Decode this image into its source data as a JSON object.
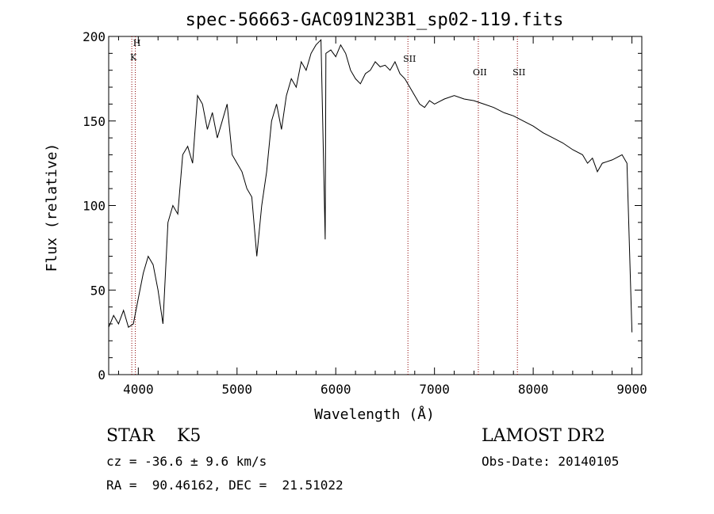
{
  "chart_data": {
    "type": "line",
    "title": "spec-56663-GAC091N23B1_sp02-119.fits",
    "xlabel": "Wavelength (Å)",
    "ylabel": "Flux (relative)",
    "xlim": [
      3700,
      9100
    ],
    "ylim": [
      0,
      200
    ],
    "x_ticks": [
      4000,
      5000,
      6000,
      7000,
      8000,
      9000
    ],
    "y_ticks": [
      0,
      50,
      100,
      150,
      200
    ],
    "line_color": "#000000",
    "marker_color": "#8b0000",
    "grid": false,
    "series": [
      {
        "x": [
          3700,
          3750,
          3800,
          3850,
          3900,
          3950,
          4000,
          4050,
          4100,
          4150,
          4200,
          4250,
          4300,
          4350,
          4400,
          4450,
          4500,
          4550,
          4600,
          4650,
          4700,
          4750,
          4800,
          4850,
          4900,
          4950,
          5000,
          5050,
          5100,
          5150,
          5200,
          5250,
          5300,
          5350,
          5400,
          5450,
          5500,
          5550,
          5600,
          5650,
          5700,
          5750,
          5800,
          5850,
          5893,
          5900,
          5950,
          6000,
          6050,
          6100,
          6150,
          6200,
          6250,
          6300,
          6350,
          6400,
          6450,
          6500,
          6550,
          6600,
          6650,
          6700,
          6750,
          6800,
          6850,
          6900,
          6950,
          7000,
          7100,
          7200,
          7300,
          7400,
          7500,
          7600,
          7700,
          7800,
          7900,
          8000,
          8100,
          8200,
          8300,
          8400,
          8500,
          8550,
          8600,
          8650,
          8700,
          8800,
          8900,
          8950,
          9000
        ],
        "y": [
          28,
          35,
          30,
          38,
          28,
          30,
          45,
          60,
          70,
          65,
          50,
          30,
          90,
          100,
          95,
          130,
          135,
          125,
          165,
          160,
          145,
          155,
          140,
          150,
          160,
          130,
          125,
          120,
          110,
          105,
          70,
          100,
          120,
          150,
          160,
          145,
          165,
          175,
          170,
          185,
          180,
          190,
          195,
          198,
          80,
          190,
          192,
          188,
          195,
          190,
          180,
          175,
          172,
          178,
          180,
          185,
          182,
          183,
          180,
          185,
          178,
          175,
          170,
          165,
          160,
          158,
          162,
          160,
          163,
          165,
          163,
          162,
          160,
          158,
          155,
          153,
          150,
          147,
          143,
          140,
          137,
          133,
          130,
          125,
          128,
          120,
          125,
          127,
          130,
          125,
          25
        ]
      }
    ],
    "lines": [
      {
        "label": "H",
        "x": 3970
      },
      {
        "label": "K",
        "x": 3934
      },
      {
        "label": "SII",
        "x": 6731
      },
      {
        "label": "OII",
        "x": 7444
      },
      {
        "label": "SII",
        "x": 7840
      }
    ]
  },
  "info": {
    "classification": "STAR    K5",
    "redshift": "cz = -36.6 ± 9.6 km/s",
    "coords": "RA =  90.46162, DEC =  21.51022",
    "survey": "LAMOST DR2",
    "obs_date": "Obs-Date: 20140105"
  }
}
